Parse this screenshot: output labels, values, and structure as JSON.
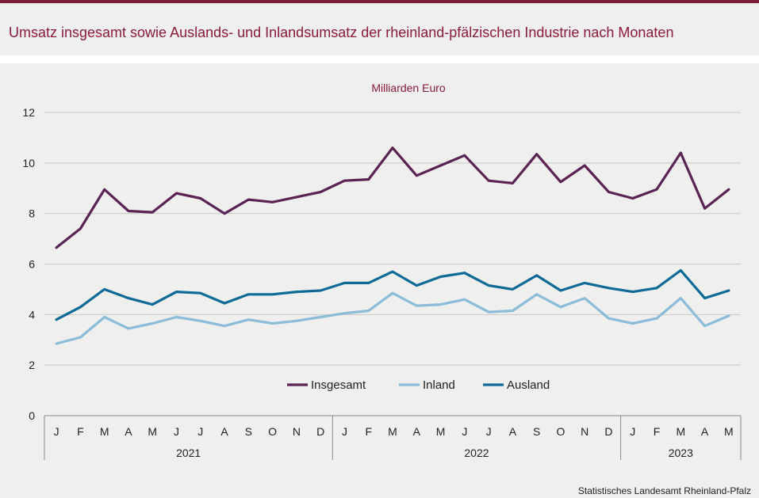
{
  "title": "Umsatz insgesamt sowie Auslands- und Inlandsumsatz der rheinland-pfälzischen Industrie nach Monaten",
  "source": "Statistisches Landesamt  Rheinland-Pfalz",
  "colors": {
    "title": "#8b1a3c",
    "insgesamt": "#5b2354",
    "inland": "#8bbcd9",
    "ausland": "#0e6a96",
    "grid": "#c8c8c8"
  },
  "chart_data": {
    "type": "line",
    "title": "Umsatz insgesamt sowie Auslands- und Inlandsumsatz der rheinland-pfälzischen Industrie nach Monaten",
    "ylabel": "Milliarden Euro",
    "xlabel": "",
    "ylim": [
      0,
      12
    ],
    "yticks": [
      0,
      2,
      4,
      6,
      8,
      10,
      12
    ],
    "grid": true,
    "legend_position": "bottom-center",
    "categories": [
      "J",
      "F",
      "M",
      "A",
      "M",
      "J",
      "J",
      "A",
      "S",
      "O",
      "N",
      "D",
      "J",
      "F",
      "M",
      "A",
      "M",
      "J",
      "J",
      "A",
      "S",
      "O",
      "N",
      "D",
      "J",
      "F",
      "M",
      "A",
      "M"
    ],
    "years": [
      {
        "label": "2021",
        "months": 12
      },
      {
        "label": "2022",
        "months": 12
      },
      {
        "label": "2023",
        "months": 5
      }
    ],
    "series": [
      {
        "name": "Insgesamt",
        "color": "#5b2354",
        "values": [
          6.65,
          7.4,
          8.95,
          8.1,
          8.05,
          8.8,
          8.6,
          8.0,
          8.55,
          8.45,
          8.65,
          8.85,
          9.3,
          9.35,
          10.6,
          9.5,
          9.9,
          10.3,
          9.3,
          9.2,
          10.35,
          9.25,
          9.9,
          8.85,
          8.6,
          8.95,
          10.4,
          8.2,
          8.95
        ]
      },
      {
        "name": "Inland",
        "color": "#8bbcd9",
        "values": [
          2.85,
          3.1,
          3.9,
          3.45,
          3.65,
          3.9,
          3.75,
          3.55,
          3.8,
          3.65,
          3.75,
          3.9,
          4.05,
          4.15,
          4.85,
          4.35,
          4.4,
          4.6,
          4.1,
          4.15,
          4.8,
          4.3,
          4.65,
          3.85,
          3.65,
          3.85,
          4.65,
          3.55,
          3.95
        ]
      },
      {
        "name": "Ausland",
        "color": "#0e6a96",
        "values": [
          3.8,
          4.3,
          5.0,
          4.65,
          4.4,
          4.9,
          4.85,
          4.45,
          4.8,
          4.8,
          4.9,
          4.95,
          5.25,
          5.25,
          5.7,
          5.15,
          5.5,
          5.65,
          5.15,
          5.0,
          5.55,
          4.95,
          5.25,
          5.05,
          4.9,
          5.05,
          5.75,
          4.65,
          4.95
        ]
      }
    ]
  }
}
